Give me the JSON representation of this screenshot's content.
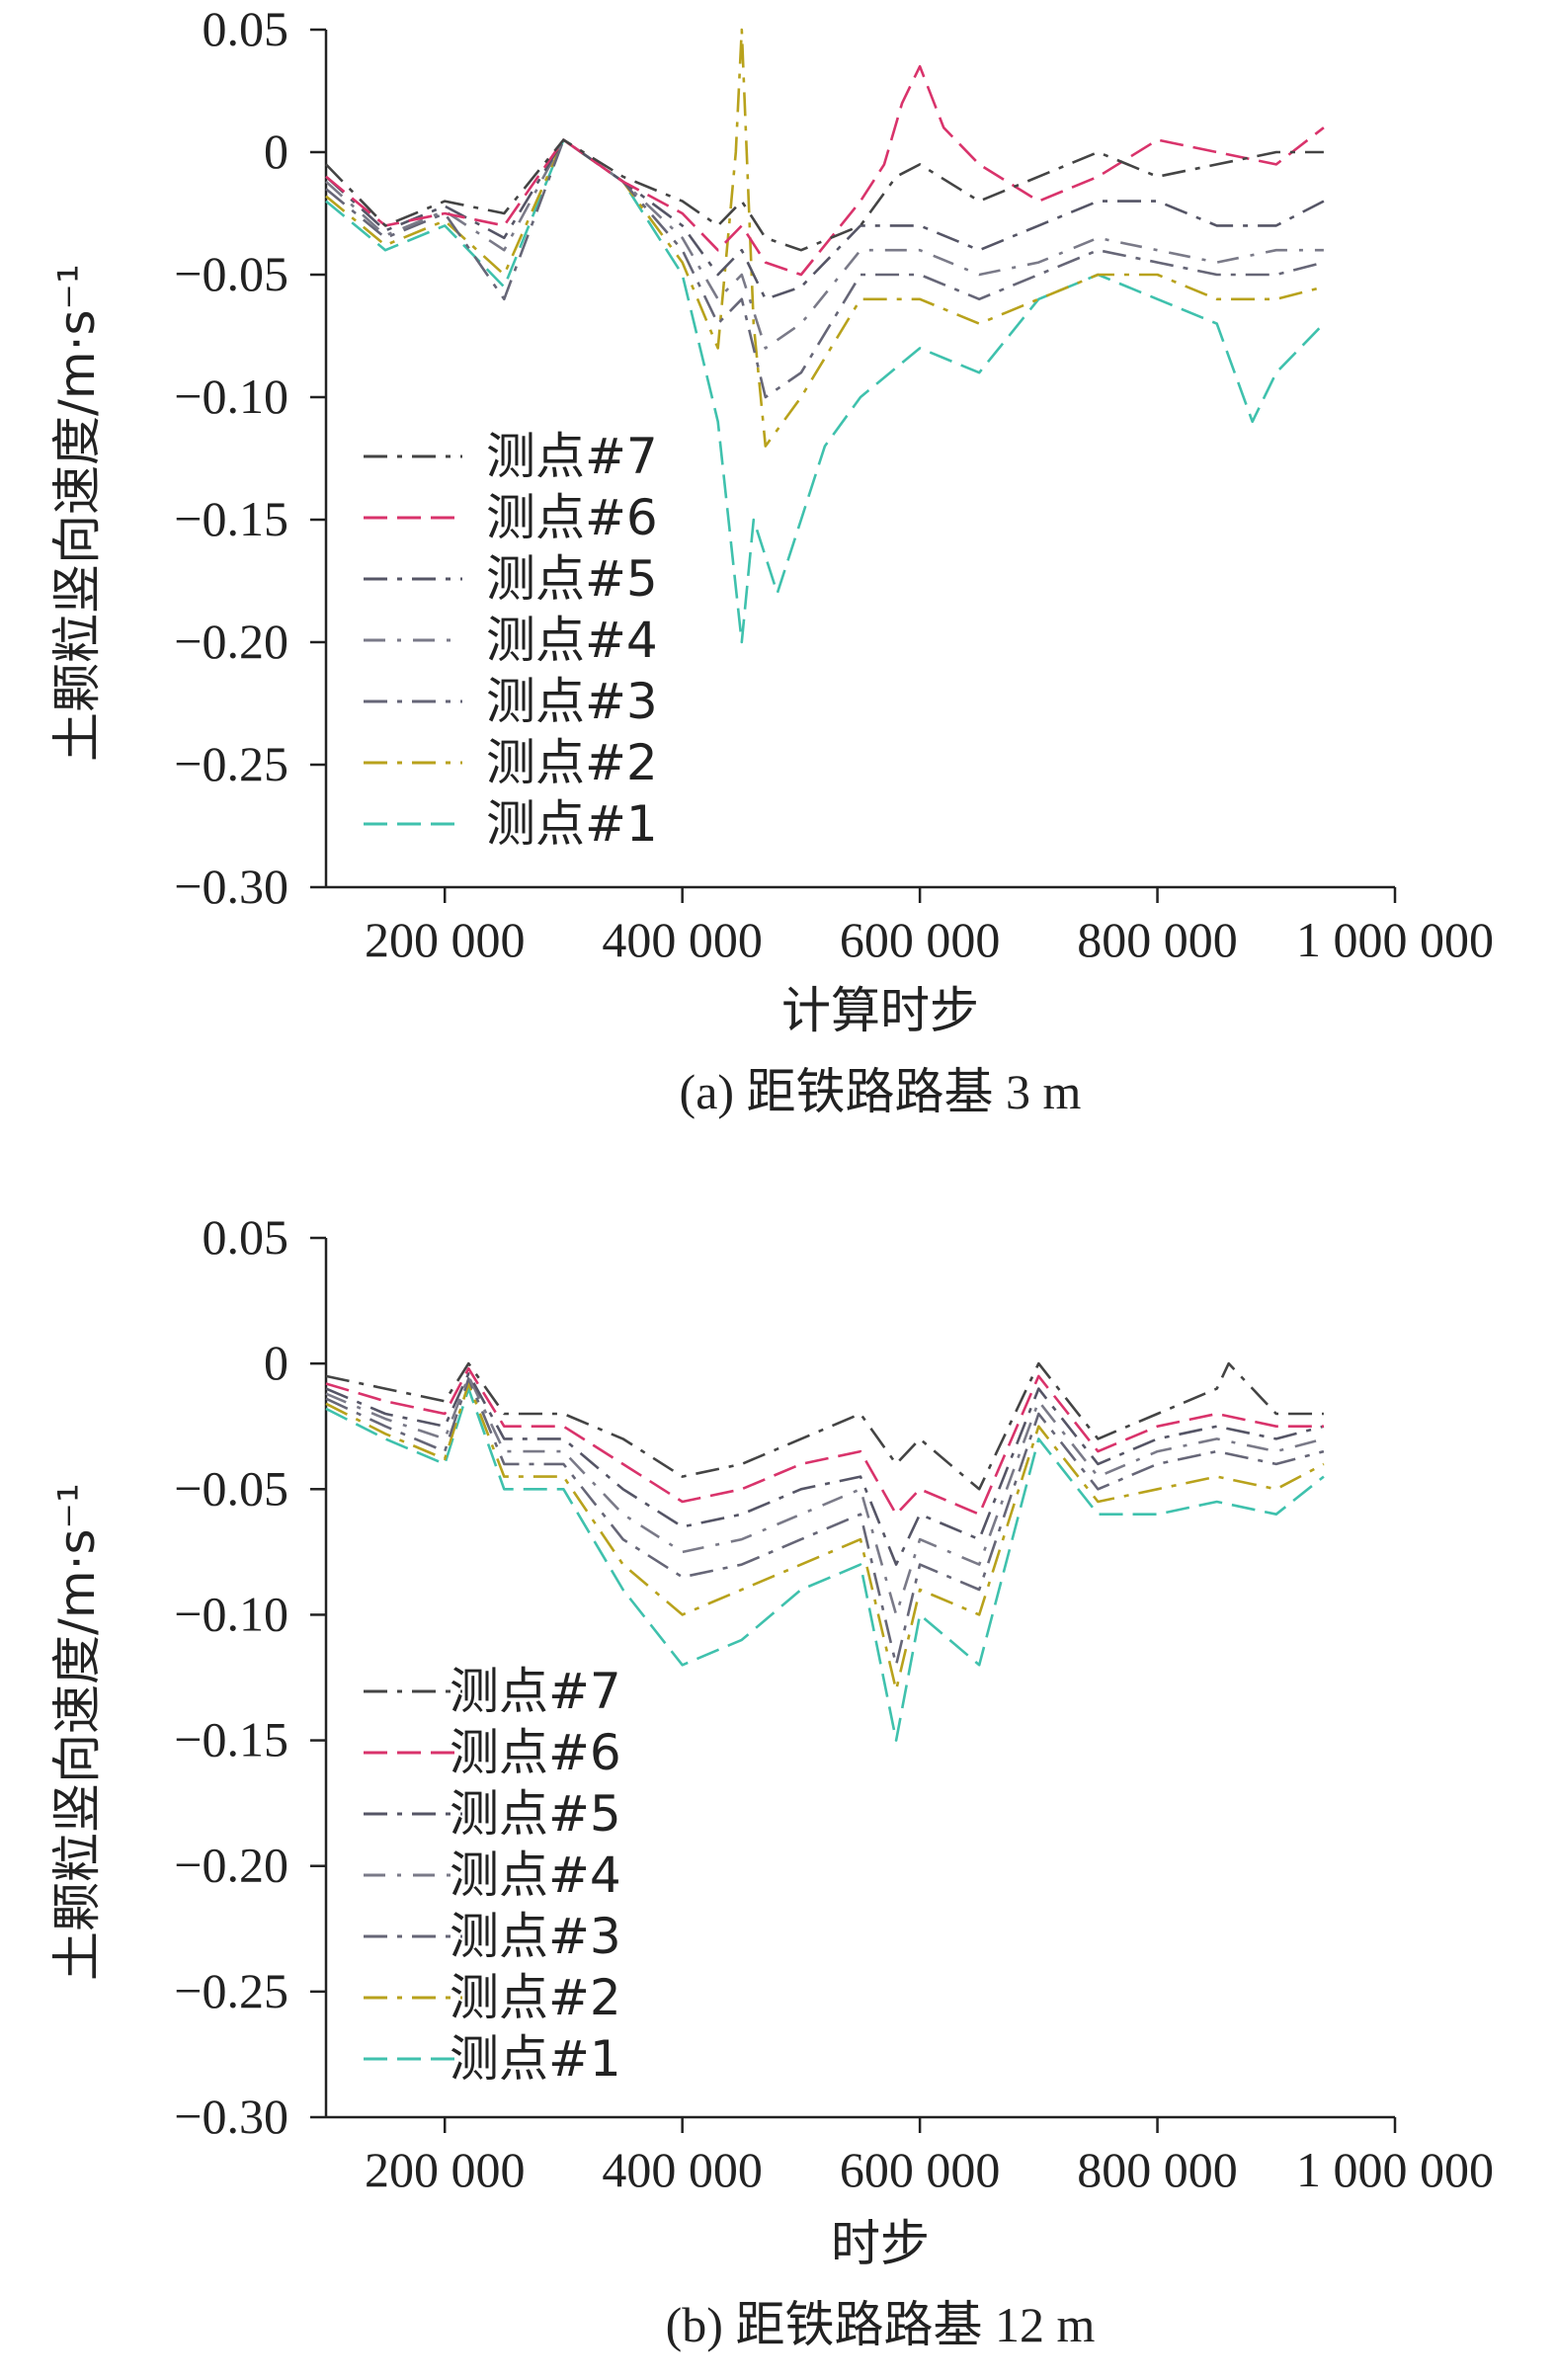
{
  "chart_data": [
    {
      "type": "line",
      "title": "(a) 距铁路路基 3 m",
      "xlabel": "计算时步",
      "ylabel": "土颗粒竖向速度/m·s⁻¹",
      "xlim": [
        100000,
        1000000
      ],
      "ylim": [
        -0.3,
        0.05
      ],
      "xticks": [
        200000,
        400000,
        600000,
        800000,
        1000000
      ],
      "xtick_labels": [
        "200 000",
        "400 000",
        "600 000",
        "800 000",
        "1 000 000"
      ],
      "yticks": [
        0.05,
        0,
        -0.05,
        -0.1,
        -0.15,
        -0.2,
        -0.25,
        -0.3
      ],
      "ytick_labels": [
        "0.05",
        "0",
        "−0.05",
        "−0.10",
        "−0.15",
        "−0.20",
        "−0.25",
        "−0.30"
      ],
      "legend_position": "left",
      "series": [
        {
          "name": "测点#7",
          "color": "#444444",
          "dash": "24 10 5 10",
          "x": [
            100000,
            150000,
            200000,
            250000,
            300000,
            350000,
            400000,
            430000,
            450000,
            470000,
            500000,
            550000,
            580000,
            600000,
            650000,
            700000,
            750000,
            800000,
            850000,
            900000,
            940000
          ],
          "y": [
            -0.005,
            -0.03,
            -0.02,
            -0.025,
            0.005,
            -0.01,
            -0.02,
            -0.03,
            -0.02,
            -0.035,
            -0.04,
            -0.03,
            -0.01,
            -0.005,
            -0.02,
            -0.01,
            0.0,
            -0.01,
            -0.005,
            0.0,
            0.0
          ]
        },
        {
          "name": "测点#6",
          "color": "#d9336b",
          "dash": "24 10",
          "x": [
            100000,
            150000,
            200000,
            250000,
            300000,
            350000,
            400000,
            430000,
            450000,
            470000,
            500000,
            550000,
            570000,
            585000,
            600000,
            620000,
            650000,
            700000,
            750000,
            800000,
            850000,
            900000,
            940000
          ],
          "y": [
            -0.01,
            -0.03,
            -0.025,
            -0.03,
            0.005,
            -0.012,
            -0.025,
            -0.04,
            -0.03,
            -0.045,
            -0.05,
            -0.02,
            -0.005,
            0.02,
            0.035,
            0.01,
            -0.005,
            -0.02,
            -0.01,
            0.005,
            0.0,
            -0.005,
            0.01
          ]
        },
        {
          "name": "测点#5",
          "color": "#555566",
          "dash": "24 10 5 10",
          "x": [
            100000,
            150000,
            200000,
            250000,
            300000,
            350000,
            400000,
            430000,
            450000,
            470000,
            500000,
            550000,
            600000,
            650000,
            700000,
            750000,
            800000,
            850000,
            900000,
            940000
          ],
          "y": [
            -0.01,
            -0.032,
            -0.022,
            -0.035,
            0.005,
            -0.012,
            -0.03,
            -0.05,
            -0.04,
            -0.06,
            -0.055,
            -0.03,
            -0.03,
            -0.04,
            -0.03,
            -0.02,
            -0.02,
            -0.03,
            -0.03,
            -0.02
          ]
        },
        {
          "name": "测点#4",
          "color": "#7a7a88",
          "dash": "22 12 4 12",
          "x": [
            100000,
            150000,
            200000,
            250000,
            300000,
            350000,
            400000,
            430000,
            450000,
            470000,
            500000,
            550000,
            600000,
            650000,
            700000,
            750000,
            800000,
            850000,
            900000,
            940000
          ],
          "y": [
            -0.012,
            -0.034,
            -0.024,
            -0.04,
            0.005,
            -0.012,
            -0.035,
            -0.06,
            -0.05,
            -0.08,
            -0.07,
            -0.04,
            -0.04,
            -0.05,
            -0.045,
            -0.035,
            -0.04,
            -0.045,
            -0.04,
            -0.04
          ]
        },
        {
          "name": "测点#3",
          "color": "#666677",
          "dash": "24 10 5 10",
          "x": [
            100000,
            150000,
            200000,
            250000,
            300000,
            350000,
            400000,
            430000,
            450000,
            470000,
            500000,
            550000,
            600000,
            650000,
            700000,
            750000,
            800000,
            850000,
            900000,
            940000
          ],
          "y": [
            -0.015,
            -0.035,
            -0.025,
            -0.06,
            0.005,
            -0.012,
            -0.04,
            -0.07,
            -0.06,
            -0.1,
            -0.09,
            -0.05,
            -0.05,
            -0.06,
            -0.05,
            -0.04,
            -0.045,
            -0.05,
            -0.05,
            -0.045
          ]
        },
        {
          "name": "测点#2",
          "color": "#b8a21c",
          "dash": "24 10 5 10",
          "x": [
            100000,
            150000,
            200000,
            250000,
            300000,
            350000,
            400000,
            430000,
            445000,
            450000,
            460000,
            470000,
            500000,
            550000,
            600000,
            650000,
            700000,
            750000,
            800000,
            850000,
            900000,
            940000
          ],
          "y": [
            -0.018,
            -0.038,
            -0.028,
            -0.05,
            0.005,
            -0.012,
            -0.045,
            -0.08,
            0.0,
            0.05,
            -0.07,
            -0.12,
            -0.1,
            -0.06,
            -0.06,
            -0.07,
            -0.06,
            -0.05,
            -0.05,
            -0.06,
            -0.06,
            -0.055
          ]
        },
        {
          "name": "测点#1",
          "color": "#3fc1ad",
          "dash": "24 10",
          "x": [
            100000,
            150000,
            200000,
            250000,
            300000,
            350000,
            400000,
            430000,
            450000,
            460000,
            480000,
            500000,
            520000,
            550000,
            600000,
            650000,
            700000,
            750000,
            800000,
            850000,
            880000,
            900000,
            940000
          ],
          "y": [
            -0.02,
            -0.04,
            -0.03,
            -0.055,
            0.005,
            -0.012,
            -0.05,
            -0.11,
            -0.2,
            -0.15,
            -0.18,
            -0.15,
            -0.12,
            -0.1,
            -0.08,
            -0.09,
            -0.06,
            -0.05,
            -0.06,
            -0.07,
            -0.11,
            -0.09,
            -0.07
          ]
        }
      ]
    },
    {
      "type": "line",
      "title": "(b) 距铁路路基 12 m",
      "xlabel": "时步",
      "ylabel": "土颗粒竖向速度/m·s⁻¹",
      "xlim": [
        100000,
        1000000
      ],
      "ylim": [
        -0.3,
        0.05
      ],
      "xticks": [
        200000,
        400000,
        600000,
        800000,
        1000000
      ],
      "xtick_labels": [
        "200 000",
        "400 000",
        "600 000",
        "800 000",
        "1 000 000"
      ],
      "yticks": [
        0.05,
        0,
        -0.05,
        -0.1,
        -0.15,
        -0.2,
        -0.25,
        -0.3
      ],
      "ytick_labels": [
        "0.05",
        "0",
        "−0.05",
        "−0.10",
        "−0.15",
        "−0.20",
        "−0.25",
        "−0.30"
      ],
      "legend_position": "left",
      "series": [
        {
          "name": "测点#7",
          "color": "#444444",
          "dash": "24 10 5 10",
          "x": [
            100000,
            150000,
            200000,
            220000,
            250000,
            300000,
            350000,
            400000,
            450000,
            500000,
            550000,
            580000,
            600000,
            650000,
            700000,
            750000,
            800000,
            850000,
            860000,
            900000,
            940000
          ],
          "y": [
            -0.005,
            -0.01,
            -0.015,
            0.0,
            -0.02,
            -0.02,
            -0.03,
            -0.045,
            -0.04,
            -0.03,
            -0.02,
            -0.04,
            -0.03,
            -0.05,
            0.0,
            -0.03,
            -0.02,
            -0.01,
            0.0,
            -0.02,
            -0.02
          ]
        },
        {
          "name": "测点#6",
          "color": "#d9336b",
          "dash": "24 10",
          "x": [
            100000,
            150000,
            200000,
            220000,
            250000,
            300000,
            350000,
            400000,
            450000,
            500000,
            550000,
            580000,
            600000,
            650000,
            700000,
            750000,
            800000,
            850000,
            900000,
            940000
          ],
          "y": [
            -0.008,
            -0.015,
            -0.02,
            -0.002,
            -0.025,
            -0.025,
            -0.04,
            -0.055,
            -0.05,
            -0.04,
            -0.035,
            -0.06,
            -0.05,
            -0.06,
            -0.005,
            -0.035,
            -0.025,
            -0.02,
            -0.025,
            -0.025
          ]
        },
        {
          "name": "测点#5",
          "color": "#555566",
          "dash": "24 10 5 10",
          "x": [
            100000,
            150000,
            200000,
            220000,
            250000,
            300000,
            350000,
            400000,
            450000,
            500000,
            550000,
            580000,
            600000,
            650000,
            700000,
            750000,
            800000,
            850000,
            900000,
            940000
          ],
          "y": [
            -0.01,
            -0.02,
            -0.025,
            -0.004,
            -0.03,
            -0.03,
            -0.05,
            -0.065,
            -0.06,
            -0.05,
            -0.045,
            -0.08,
            -0.06,
            -0.07,
            -0.01,
            -0.04,
            -0.03,
            -0.025,
            -0.03,
            -0.025
          ]
        },
        {
          "name": "测点#4",
          "color": "#7a7a88",
          "dash": "22 12 4 12",
          "x": [
            100000,
            150000,
            200000,
            220000,
            250000,
            300000,
            350000,
            400000,
            450000,
            500000,
            550000,
            580000,
            600000,
            650000,
            700000,
            750000,
            800000,
            850000,
            900000,
            940000
          ],
          "y": [
            -0.012,
            -0.022,
            -0.03,
            -0.005,
            -0.035,
            -0.035,
            -0.06,
            -0.075,
            -0.07,
            -0.06,
            -0.05,
            -0.1,
            -0.07,
            -0.08,
            -0.015,
            -0.045,
            -0.035,
            -0.03,
            -0.035,
            -0.03
          ]
        },
        {
          "name": "测点#3",
          "color": "#666677",
          "dash": "24 10 5 10",
          "x": [
            100000,
            150000,
            200000,
            220000,
            250000,
            300000,
            350000,
            400000,
            450000,
            500000,
            550000,
            580000,
            600000,
            650000,
            700000,
            750000,
            800000,
            850000,
            900000,
            940000
          ],
          "y": [
            -0.014,
            -0.025,
            -0.035,
            -0.006,
            -0.04,
            -0.04,
            -0.07,
            -0.085,
            -0.08,
            -0.07,
            -0.06,
            -0.12,
            -0.08,
            -0.09,
            -0.02,
            -0.05,
            -0.04,
            -0.035,
            -0.04,
            -0.035
          ]
        },
        {
          "name": "测点#2",
          "color": "#b8a21c",
          "dash": "24 10 5 10",
          "x": [
            100000,
            150000,
            200000,
            220000,
            250000,
            300000,
            350000,
            400000,
            450000,
            500000,
            550000,
            580000,
            600000,
            650000,
            700000,
            750000,
            800000,
            850000,
            900000,
            940000
          ],
          "y": [
            -0.016,
            -0.028,
            -0.038,
            -0.008,
            -0.045,
            -0.045,
            -0.08,
            -0.1,
            -0.09,
            -0.08,
            -0.07,
            -0.13,
            -0.09,
            -0.1,
            -0.025,
            -0.055,
            -0.05,
            -0.045,
            -0.05,
            -0.04
          ]
        },
        {
          "name": "测点#1",
          "color": "#3fc1ad",
          "dash": "24 10",
          "x": [
            100000,
            150000,
            200000,
            220000,
            250000,
            300000,
            350000,
            400000,
            450000,
            500000,
            550000,
            580000,
            600000,
            650000,
            700000,
            750000,
            800000,
            850000,
            900000,
            940000
          ],
          "y": [
            -0.018,
            -0.03,
            -0.04,
            -0.01,
            -0.05,
            -0.05,
            -0.09,
            -0.12,
            -0.11,
            -0.09,
            -0.08,
            -0.15,
            -0.1,
            -0.12,
            -0.03,
            -0.06,
            -0.06,
            -0.055,
            -0.06,
            -0.045
          ]
        }
      ]
    }
  ]
}
